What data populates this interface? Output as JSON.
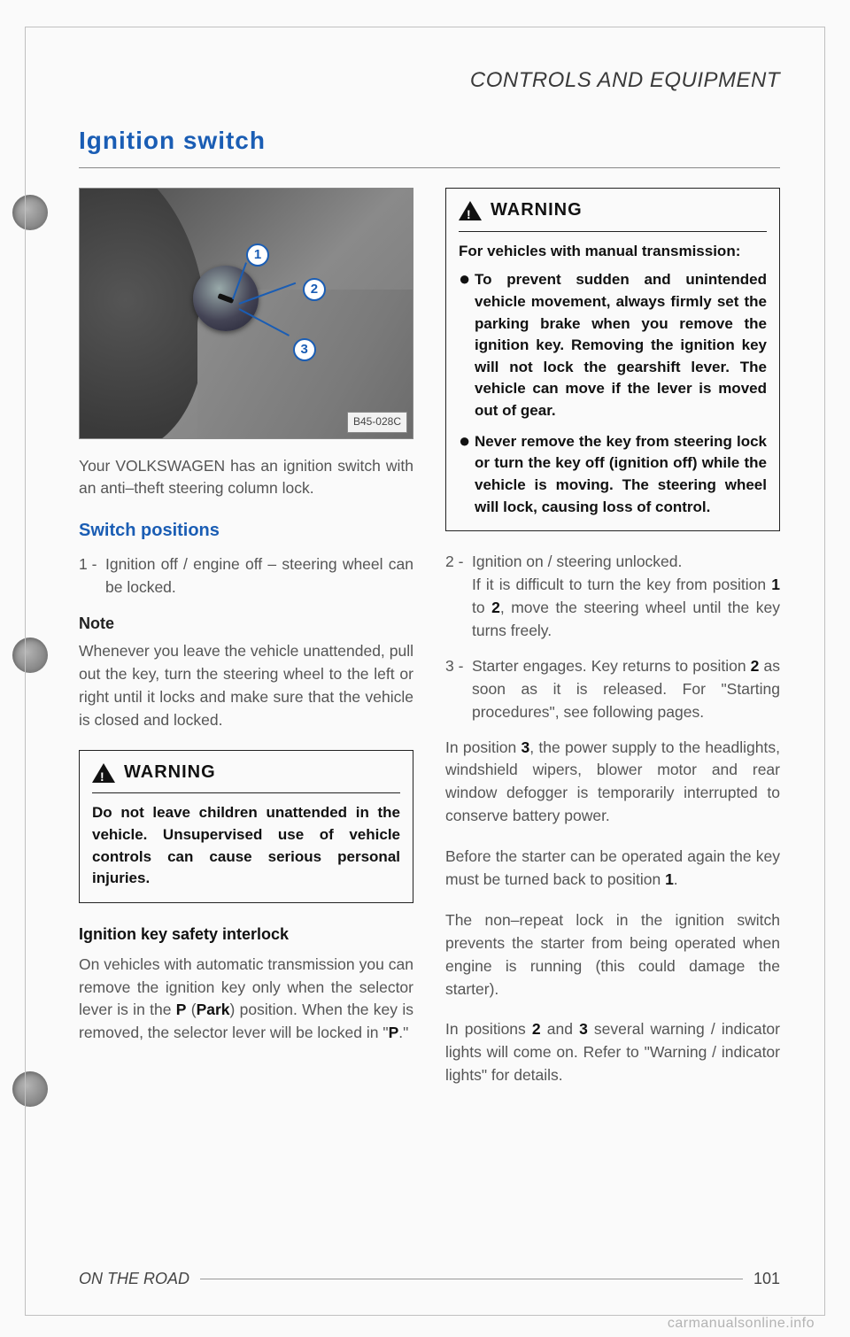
{
  "section_header": "CONTROLS AND EQUIPMENT",
  "page_title": "Ignition  switch",
  "figure": {
    "label": "B45-028C",
    "callouts": [
      "1",
      "2",
      "3"
    ]
  },
  "left": {
    "intro": "Your VOLKSWAGEN has an ignition switch with an anti–theft steering column lock.",
    "sub_heading": "Switch positions",
    "item1_num": "1 -",
    "item1_text": "Ignition off / engine off  – steering wheel can be locked.",
    "note_heading": "Note",
    "note_text": "Whenever you leave the vehicle unattended, pull out the key, turn the steering wheel to the left or right until it locks and make sure that the vehicle is closed and locked.",
    "warning_title": "WARNING",
    "warning_body": "Do not leave children unattended in the vehicle. Unsupervised use of vehicle controls can cause serious personal injuries.",
    "interlock_heading": "Ignition key safety interlock",
    "interlock_p1_a": "On vehicles with automatic transmission you can remove the ignition key only when the selector lever is in the ",
    "interlock_p1_b": "P",
    "interlock_p1_c": " (",
    "interlock_p1_d": "Park",
    "interlock_p1_e": ") position. When the key is removed, the selector lever will be locked in \"",
    "interlock_p1_f": "P",
    "interlock_p1_g": ".\""
  },
  "right": {
    "warning_title": "WARNING",
    "warning_sub": "For vehicles with manual transmission:",
    "warning_b1": "To prevent sudden and unintended vehicle movement, always firmly set the parking brake when you remove the ignition key.  Removing the ignition key will not lock the gearshift lever.  The vehicle can move if the lever is moved out of gear.",
    "warning_b2": "Never remove the key from steering lock or turn the key off (ignition off) while the vehicle is moving.  The steering wheel will lock, causing loss of control.",
    "item2_num": "2 -",
    "item2_a": "Ignition on / steering unlocked.",
    "item2_b_pre": "If it is difficult to turn the key from position ",
    "item2_b_1": "1",
    "item2_b_mid": " to ",
    "item2_b_2": "2",
    "item2_b_post": ", move the steering wheel until the key turns freely.",
    "item3_num": "3 -",
    "item3_a_pre": "Starter engages.  Key returns to position ",
    "item3_a_2": "2",
    "item3_a_post": " as soon as it is released.  For \"Starting procedures\", see following pages.",
    "p1_pre": "In position ",
    "p1_3": "3",
    "p1_post": ", the power supply to the headlights, windshield wipers, blower motor and rear window defogger is temporarily interrupted to conserve battery power.",
    "p2_pre": "Before the starter can be operated again the key must be turned back to position ",
    "p2_1": "1",
    "p2_post": ".",
    "p3": "The non–repeat lock in the ignition switch prevents the starter from being operated when engine is running (this could damage the starter).",
    "p4_pre": "In positions ",
    "p4_2": "2",
    "p4_mid": " and ",
    "p4_3": "3",
    "p4_post": " several warning / indicator lights will come on.  Refer to \"Warning / indicator lights\" for details."
  },
  "footer": {
    "label": "ON THE ROAD",
    "page": "101"
  },
  "watermark": "carmanualsonline.info"
}
